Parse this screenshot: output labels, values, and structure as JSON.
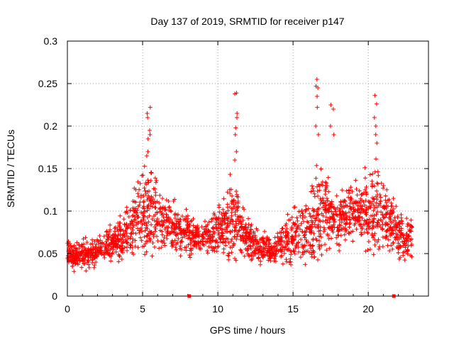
{
  "chart_data": {
    "type": "scatter",
    "title": "Day 137 of 2019, SRMTID for receiver p147",
    "xlabel": "GPS time / hours",
    "ylabel": "SRMTID / TECUs",
    "xlim": [
      0,
      24
    ],
    "ylim": [
      0,
      0.3
    ],
    "x_ticks": [
      0,
      5,
      10,
      15,
      20
    ],
    "x_tick_labels": [
      "0",
      "5",
      "10",
      "15",
      "20"
    ],
    "y_ticks": [
      0,
      0.05,
      0.1,
      0.15,
      0.2,
      0.25,
      0.3
    ],
    "y_tick_labels": [
      "0",
      "0.05",
      "0.1",
      "0.15",
      "0.2",
      "0.25",
      "0.3"
    ],
    "grid": true,
    "marker": "plus",
    "series_color": "#ff0000",
    "axis_markers_x": [
      8.1,
      21.7
    ],
    "envelope": {
      "x": [
        0,
        0.5,
        1,
        1.5,
        2,
        2.5,
        3,
        3.5,
        4,
        4.5,
        5,
        5.5,
        6,
        6.5,
        7,
        7.5,
        8,
        8.5,
        9,
        9.5,
        10,
        10.5,
        11,
        11.5,
        12,
        12.5,
        13,
        13.5,
        14,
        14.5,
        15,
        15.5,
        16,
        16.5,
        17,
        17.5,
        18,
        18.5,
        19,
        19.5,
        20,
        20.5,
        21,
        21.5,
        22,
        22.5,
        22.9
      ],
      "center": [
        0.05,
        0.045,
        0.05,
        0.048,
        0.055,
        0.06,
        0.062,
        0.068,
        0.075,
        0.09,
        0.1,
        0.105,
        0.09,
        0.085,
        0.08,
        0.078,
        0.075,
        0.07,
        0.068,
        0.072,
        0.078,
        0.085,
        0.09,
        0.08,
        0.07,
        0.06,
        0.055,
        0.055,
        0.058,
        0.065,
        0.07,
        0.075,
        0.08,
        0.09,
        0.1,
        0.095,
        0.09,
        0.095,
        0.1,
        0.1,
        0.1,
        0.1,
        0.095,
        0.085,
        0.075,
        0.065,
        0.07
      ],
      "spread": [
        0.015,
        0.015,
        0.018,
        0.018,
        0.018,
        0.02,
        0.02,
        0.025,
        0.03,
        0.04,
        0.055,
        0.06,
        0.04,
        0.035,
        0.03,
        0.028,
        0.025,
        0.02,
        0.02,
        0.022,
        0.025,
        0.035,
        0.06,
        0.03,
        0.025,
        0.02,
        0.02,
        0.02,
        0.022,
        0.025,
        0.035,
        0.03,
        0.05,
        0.07,
        0.06,
        0.04,
        0.035,
        0.035,
        0.035,
        0.035,
        0.05,
        0.06,
        0.04,
        0.035,
        0.03,
        0.025,
        0.025
      ]
    },
    "peaks": [
      {
        "x": 5.4,
        "values": [
          0.222,
          0.215,
          0.21,
          0.195,
          0.19,
          0.185,
          0.17,
          0.165
        ]
      },
      {
        "x": 11.2,
        "values": [
          0.239,
          0.238,
          0.215,
          0.21,
          0.198,
          0.19,
          0.17,
          0.16
        ]
      },
      {
        "x": 16.6,
        "values": [
          0.255,
          0.247,
          0.245,
          0.235,
          0.222,
          0.2,
          0.19
        ]
      },
      {
        "x": 17.6,
        "values": [
          0.225,
          0.22,
          0.2,
          0.19
        ]
      },
      {
        "x": 20.5,
        "values": [
          0.236,
          0.226,
          0.21,
          0.2,
          0.19,
          0.18
        ]
      }
    ]
  }
}
